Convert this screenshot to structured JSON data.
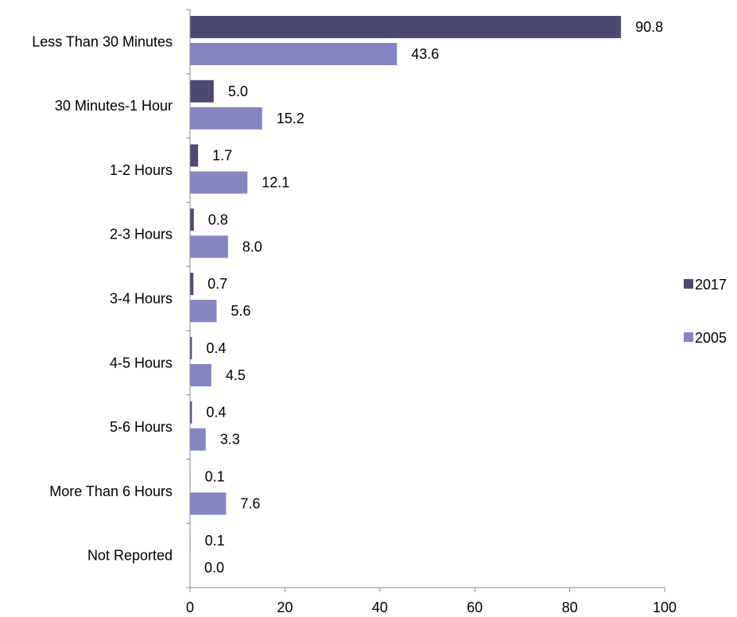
{
  "chart_data": {
    "type": "bar",
    "orientation": "horizontal",
    "categories": [
      "Less Than 30 Minutes",
      "30 Minutes-1 Hour",
      "1-2 Hours",
      "2-3 Hours",
      "3-4 Hours",
      "4-5  Hours",
      "5-6 Hours",
      "More Than 6 Hours",
      "Not Reported"
    ],
    "series": [
      {
        "name": "2017",
        "color": "#4a4a72",
        "values": [
          90.8,
          5.0,
          1.7,
          0.8,
          0.7,
          0.4,
          0.4,
          0.1,
          0.1
        ],
        "labels": [
          "90.8",
          "5.0",
          "1.7",
          "0.8",
          "0.7",
          "0.4",
          "0.4",
          "0.1",
          "0.1"
        ]
      },
      {
        "name": "2005",
        "color": "#8585c2",
        "values": [
          43.6,
          15.2,
          12.1,
          8.0,
          5.6,
          4.5,
          3.3,
          7.6,
          0.0
        ],
        "labels": [
          "43.6",
          "15.2",
          "12.1",
          "8.0",
          "5.6",
          "4.5",
          "3.3",
          "7.6",
          "0.0"
        ]
      }
    ],
    "xlim": [
      0,
      100
    ],
    "xticks": [
      0,
      20,
      40,
      60,
      80,
      100
    ],
    "xtick_labels": [
      "0",
      "20",
      "40",
      "60",
      "80",
      "100"
    ],
    "title": "",
    "xlabel": "",
    "ylabel": "",
    "legend_position": "right",
    "grid": false
  }
}
